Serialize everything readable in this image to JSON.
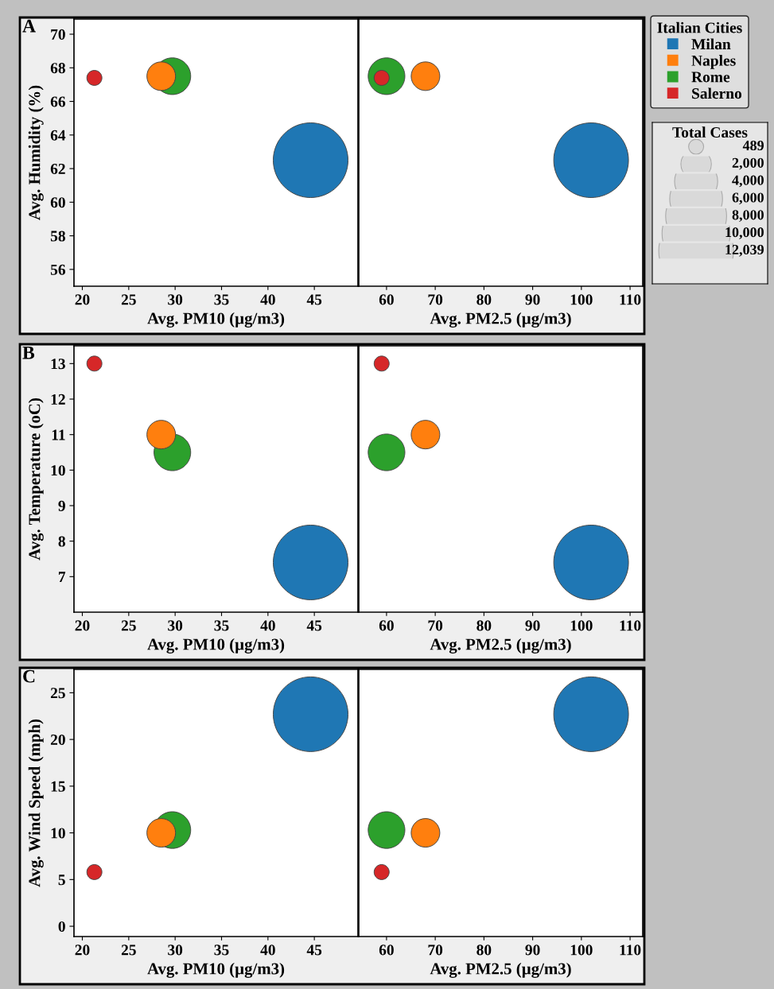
{
  "chart_data": [
    {
      "type": "bubble",
      "xlabel": "Avg. PM10 (µg/m3)",
      "ylabel": "Avg. Humidity (%)",
      "annotations": [
        "A"
      ],
      "xlim": [
        19.1,
        49.7
      ],
      "xticks": [
        20,
        25,
        30,
        35,
        40,
        45
      ],
      "ylim": [
        55.0,
        70.9
      ],
      "yticks": [
        56,
        58,
        60,
        62,
        64,
        66,
        68,
        70
      ],
      "series": [
        {
          "color": "#1f77b4",
          "x": [
            44.6
          ],
          "values": [
            62.5
          ]
        },
        {
          "color": "#ff7f0e",
          "x": [
            28.5
          ],
          "values": [
            67.5
          ]
        },
        {
          "color": "#2ca02c",
          "x": [
            29.7
          ],
          "values": [
            67.5
          ]
        },
        {
          "color": "#d62728",
          "x": [
            21.3
          ],
          "values": [
            67.4
          ]
        }
      ]
    },
    {
      "type": "bubble",
      "xlabel": "Avg. PM2.5 (µg/m3)",
      "legend_title": "Italian Cities",
      "legend": "right",
      "annotations": [
        "Total Cases"
      ],
      "size_legend": [
        {
          "value": 489,
          "label": "489"
        },
        {
          "value": 2000,
          "label": "2,000"
        },
        {
          "value": 4000,
          "label": "4,000"
        },
        {
          "value": 6000,
          "label": "6,000"
        },
        {
          "value": 8000,
          "label": "8,000"
        },
        {
          "value": 10000,
          "label": "10,000"
        },
        {
          "value": 12039,
          "label": "12,039"
        }
      ],
      "xlim": [
        54.3,
        112.6
      ],
      "xticks": [
        60,
        70,
        80,
        90,
        100,
        110
      ],
      "ylim": [
        55.0,
        70.9
      ],
      "yticks": [
        56,
        58,
        60,
        62,
        64,
        66,
        68,
        70
      ],
      "tick_labels": "x",
      "series": [
        {
          "name": "Milan",
          "color": "#1f77b4",
          "x": [
            102
          ],
          "values": [
            62.5
          ],
          "sizes": [
            12039
          ]
        },
        {
          "name": "Naples",
          "color": "#ff7f0e",
          "x": [
            68
          ],
          "values": [
            67.5
          ],
          "sizes": [
            1770
          ]
        },
        {
          "name": "Rome",
          "color": "#2ca02c",
          "x": [
            60
          ],
          "values": [
            67.5
          ],
          "sizes": [
            2900
          ]
        },
        {
          "name": "Salerno",
          "color": "#d62728",
          "x": [
            59
          ],
          "values": [
            67.4
          ],
          "sizes": [
            489
          ]
        }
      ]
    },
    {
      "type": "bubble",
      "xlabel": "Avg. PM10 (µg/m3)",
      "ylabel": "Avg. Temperature (oC)",
      "annotations": [
        "B"
      ],
      "xlim": [
        19.1,
        49.7
      ],
      "xticks": [
        20,
        25,
        30,
        35,
        40,
        45
      ],
      "ylim": [
        6.0,
        13.5
      ],
      "yticks": [
        7,
        8,
        9,
        10,
        11,
        12,
        13
      ],
      "series": [
        {
          "color": "#1f77b4",
          "x": [
            44.6
          ],
          "values": [
            7.4
          ]
        },
        {
          "color": "#ff7f0e",
          "x": [
            28.5
          ],
          "values": [
            11.0
          ]
        },
        {
          "color": "#2ca02c",
          "x": [
            29.7
          ],
          "values": [
            10.5
          ]
        },
        {
          "color": "#d62728",
          "x": [
            21.3
          ],
          "values": [
            13.0
          ]
        }
      ]
    },
    {
      "type": "bubble",
      "xlabel": "Avg. PM2.5 (µg/m3)",
      "xlim": [
        54.3,
        112.6
      ],
      "xticks": [
        60,
        70,
        80,
        90,
        100,
        110
      ],
      "ylim": [
        6.0,
        13.5
      ],
      "yticks": [
        7,
        8,
        9,
        10,
        11,
        12,
        13
      ],
      "tick_labels": "x",
      "series": [
        {
          "color": "#1f77b4",
          "x": [
            102
          ],
          "values": [
            7.4
          ]
        },
        {
          "color": "#ff7f0e",
          "x": [
            68
          ],
          "values": [
            11.0
          ]
        },
        {
          "color": "#2ca02c",
          "x": [
            60
          ],
          "values": [
            10.5
          ]
        },
        {
          "color": "#d62728",
          "x": [
            59
          ],
          "values": [
            13.0
          ]
        }
      ]
    },
    {
      "type": "bubble",
      "xlabel": "Avg. PM10 (µg/m3)",
      "ylabel": "Avg. Wind Speed (mph)",
      "annotations": [
        "C"
      ],
      "xlim": [
        19.1,
        49.7
      ],
      "xticks": [
        20,
        25,
        30,
        35,
        40,
        45
      ],
      "ylim": [
        -1.1,
        27.5
      ],
      "yticks": [
        0,
        5,
        10,
        15,
        20,
        25
      ],
      "series": [
        {
          "color": "#1f77b4",
          "x": [
            44.6
          ],
          "values": [
            22.7
          ]
        },
        {
          "color": "#ff7f0e",
          "x": [
            28.5
          ],
          "values": [
            10.0
          ]
        },
        {
          "color": "#2ca02c",
          "x": [
            29.7
          ],
          "values": [
            10.3
          ]
        },
        {
          "color": "#d62728",
          "x": [
            21.3
          ],
          "values": [
            5.8
          ]
        }
      ]
    },
    {
      "type": "bubble",
      "xlabel": "Avg. PM2.5 (µg/m3)",
      "xlim": [
        54.3,
        112.6
      ],
      "xticks": [
        60,
        70,
        80,
        90,
        100,
        110
      ],
      "ylim": [
        -1.1,
        27.5
      ],
      "yticks": [
        0,
        5,
        10,
        15,
        20,
        25
      ],
      "tick_labels": "x",
      "series": [
        {
          "color": "#1f77b4",
          "x": [
            102
          ],
          "values": [
            22.7
          ]
        },
        {
          "color": "#ff7f0e",
          "x": [
            68
          ],
          "values": [
            10.0
          ]
        },
        {
          "color": "#2ca02c",
          "x": [
            60
          ],
          "values": [
            10.3
          ]
        },
        {
          "color": "#d62728",
          "x": [
            59
          ],
          "values": [
            5.8
          ]
        }
      ]
    }
  ]
}
